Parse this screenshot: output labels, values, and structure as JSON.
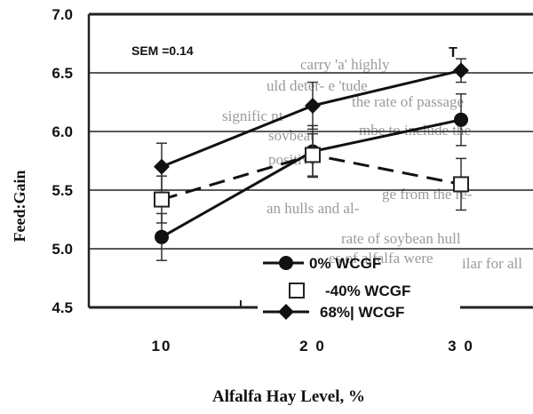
{
  "chart_data": {
    "type": "line",
    "xlabel": "Alfalfa Hay Level, %",
    "ylabel": "Feed:Gain",
    "x": [
      10,
      20,
      30
    ],
    "x_tick_labels": [
      "10",
      "2 0",
      "3 0"
    ],
    "ylim": [
      4.5,
      7.0
    ],
    "y_ticks": [
      "4.5",
      "5.0",
      "5.5",
      "6.0",
      "6.5",
      "7.0"
    ],
    "grid": true,
    "legend_position": "bottom-right",
    "annotations": {
      "sem": "SEM =0.14",
      "trend_marker": "T"
    },
    "series": [
      {
        "name": "0% WCGF",
        "marker": "filled-circle",
        "line": "solid",
        "values": [
          5.1,
          5.83,
          6.1
        ],
        "errors": [
          0.2,
          0.22,
          0.22
        ]
      },
      {
        "name": "-40% WCGF",
        "marker": "open-square",
        "line": "dashed",
        "values": [
          5.42,
          5.8,
          5.55
        ],
        "errors": [
          0.2,
          0.18,
          0.22
        ]
      },
      {
        "name": "68%| WCGF",
        "marker": "filled-diamond",
        "line": "solid",
        "values": [
          5.7,
          6.22,
          6.52
        ],
        "errors": [
          0.2,
          0.2,
          0.1
        ]
      }
    ]
  },
  "background_text": [
    {
      "text": "carry 'a' highly"
    },
    {
      "text": "the rate of passage"
    },
    {
      "text": "uld deter- e 'tude"
    },
    {
      "text": "mbe to include the"
    },
    {
      "text": "signific nt"
    },
    {
      "text": "sovbeat"
    },
    {
      "text": "positive"
    },
    {
      "text": "rate of soybean hull"
    },
    {
      "text": "es of alfalfa were"
    },
    {
      "text": "an hulls and al-"
    },
    {
      "text": "ge from the re-"
    },
    {
      "text": "ilar for all"
    }
  ]
}
